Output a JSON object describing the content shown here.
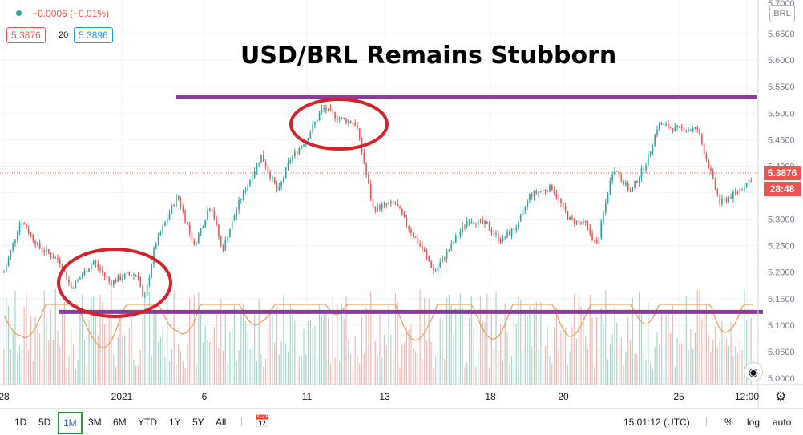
{
  "header": {
    "change": "−0.0006 (−0.01%)",
    "bid": "5.3876",
    "spread": "20",
    "ask": "5.3896"
  },
  "title": "USD/BRL Remains Stubborn",
  "axis": {
    "currency": "BRL",
    "price_ticks": [
      "5.6500",
      "5.6000",
      "5.5500",
      "5.5000",
      "5.4500",
      "5.4000",
      "5.3500",
      "5.3000",
      "5.2500",
      "5.2000",
      "5.1500",
      "5.1000",
      "5.0500",
      "5.0000"
    ],
    "top_tick": "5.7000",
    "last_price": "5.3876",
    "countdown": "28:48",
    "time_ticks": [
      "28",
      "2021",
      "6",
      "11",
      "13",
      "18",
      "20",
      "25",
      "12:00"
    ]
  },
  "colors": {
    "up": "#26a69a",
    "down": "#ef5350",
    "horizontal_lines": "#8e3aa0",
    "circles": "#d6202a",
    "oscillator": "#f0a060"
  },
  "toolbar": {
    "ranges": [
      "1D",
      "5D",
      "1M",
      "3M",
      "6M",
      "YTD",
      "1Y",
      "5Y",
      "All"
    ],
    "active_range": "1M",
    "time": "15:01:12 (UTC)",
    "percent": "%",
    "log": "log",
    "auto": "auto"
  },
  "chart_data": {
    "type": "candlestick",
    "title": "USD/BRL Remains Stubborn",
    "ylim": [
      4.99,
      5.71
    ],
    "x_tick_labels": [
      "28",
      "2021",
      "6",
      "11",
      "13",
      "18",
      "20",
      "25",
      "12:00"
    ],
    "close_path": [
      {
        "x": 0,
        "y": 5.2
      },
      {
        "x": 1.5,
        "y": 5.3
      },
      {
        "x": 3,
        "y": 5.25
      },
      {
        "x": 5,
        "y": 5.22
      },
      {
        "x": 6,
        "y": 5.17
      },
      {
        "x": 8,
        "y": 5.22
      },
      {
        "x": 9.5,
        "y": 5.18
      },
      {
        "x": 11,
        "y": 5.195
      },
      {
        "x": 12,
        "y": 5.195
      },
      {
        "x": 12.5,
        "y": 5.14
      },
      {
        "x": 13.5,
        "y": 5.25
      },
      {
        "x": 15.5,
        "y": 5.345
      },
      {
        "x": 17,
        "y": 5.25
      },
      {
        "x": 18.5,
        "y": 5.33
      },
      {
        "x": 19.5,
        "y": 5.24
      },
      {
        "x": 21,
        "y": 5.33
      },
      {
        "x": 23,
        "y": 5.42
      },
      {
        "x": 24.5,
        "y": 5.35
      },
      {
        "x": 25.5,
        "y": 5.41
      },
      {
        "x": 27,
        "y": 5.45
      },
      {
        "x": 28.5,
        "y": 5.51
      },
      {
        "x": 30,
        "y": 5.49
      },
      {
        "x": 31.5,
        "y": 5.48
      },
      {
        "x": 33,
        "y": 5.32
      },
      {
        "x": 35,
        "y": 5.33
      },
      {
        "x": 36,
        "y": 5.29
      },
      {
        "x": 37.5,
        "y": 5.24
      },
      {
        "x": 38.5,
        "y": 5.2
      },
      {
        "x": 40,
        "y": 5.25
      },
      {
        "x": 41.5,
        "y": 5.3
      },
      {
        "x": 43,
        "y": 5.29
      },
      {
        "x": 44.5,
        "y": 5.26
      },
      {
        "x": 46,
        "y": 5.29
      },
      {
        "x": 47,
        "y": 5.345
      },
      {
        "x": 49,
        "y": 5.36
      },
      {
        "x": 50.5,
        "y": 5.3
      },
      {
        "x": 52,
        "y": 5.29
      },
      {
        "x": 53,
        "y": 5.25
      },
      {
        "x": 54.5,
        "y": 5.4
      },
      {
        "x": 56,
        "y": 5.35
      },
      {
        "x": 57.5,
        "y": 5.41
      },
      {
        "x": 58.5,
        "y": 5.48
      },
      {
        "x": 60,
        "y": 5.47
      },
      {
        "x": 62,
        "y": 5.47
      },
      {
        "x": 63,
        "y": 5.4
      },
      {
        "x": 64,
        "y": 5.33
      },
      {
        "x": 65.5,
        "y": 5.35
      },
      {
        "x": 67,
        "y": 5.38
      }
    ],
    "resistance": 5.53,
    "support": 5.125,
    "annotations": [
      "circle around January 11-12 high near 5.50",
      "circle around late-December low near 5.17"
    ]
  }
}
